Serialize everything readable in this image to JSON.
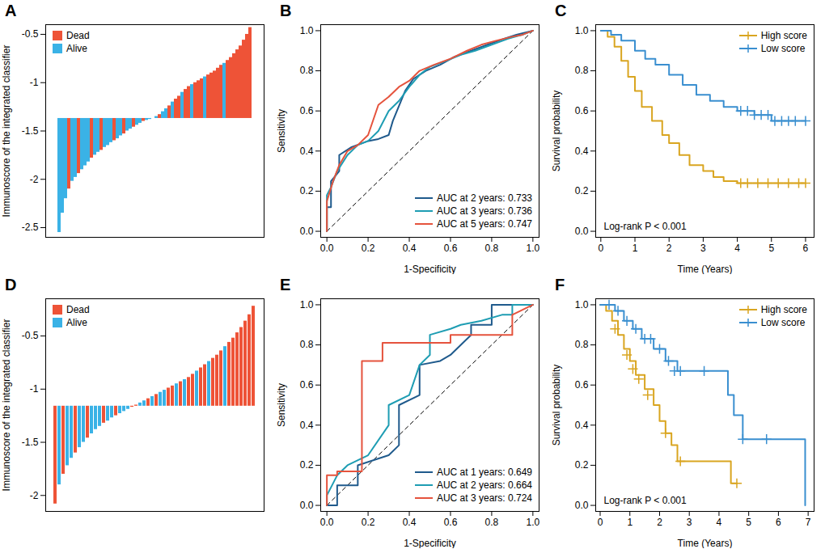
{
  "chart_data": [
    {
      "panel": "A",
      "type": "bar",
      "ylabel": "Immunoscore of the integrated classifier",
      "baseline": -1.37,
      "values": [
        -2.55,
        -2.35,
        -2.2,
        -2.1,
        -2.02,
        -1.98,
        -1.94,
        -1.9,
        -1.86,
        -1.82,
        -1.78,
        -1.75,
        -1.72,
        -1.7,
        -1.67,
        -1.65,
        -1.62,
        -1.6,
        -1.58,
        -1.55,
        -1.53,
        -1.5,
        -1.48,
        -1.46,
        -1.44,
        -1.42,
        -1.4,
        -1.39,
        -1.38,
        -1.37,
        -1.35,
        -1.33,
        -1.3,
        -1.27,
        -1.24,
        -1.2,
        -1.17,
        -1.14,
        -1.1,
        -1.07,
        -1.04,
        -1.02,
        -1.0,
        -0.98,
        -0.96,
        -0.94,
        -0.92,
        -0.9,
        -0.88,
        -0.85,
        -0.82,
        -0.8,
        -0.77,
        -0.74,
        -0.7,
        -0.66,
        -0.62,
        -0.56,
        -0.5,
        -0.43
      ],
      "status": [
        "Alive",
        "Alive",
        "Alive",
        "Dead",
        "Alive",
        "Alive",
        "Dead",
        "Alive",
        "Alive",
        "Alive",
        "Dead",
        "Alive",
        "Alive",
        "Dead",
        "Alive",
        "Alive",
        "Alive",
        "Dead",
        "Alive",
        "Alive",
        "Dead",
        "Alive",
        "Alive",
        "Dead",
        "Alive",
        "Alive",
        "Dead",
        "Alive",
        "Alive",
        "Dead",
        "Alive",
        "Dead",
        "Alive",
        "Alive",
        "Dead",
        "Alive",
        "Dead",
        "Dead",
        "Alive",
        "Dead",
        "Dead",
        "Alive",
        "Dead",
        "Dead",
        "Dead",
        "Alive",
        "Dead",
        "Dead",
        "Dead",
        "Dead",
        "Dead",
        "Alive",
        "Dead",
        "Dead",
        "Dead",
        "Dead",
        "Dead",
        "Dead",
        "Dead",
        "Dead"
      ],
      "series": [
        {
          "name": "Dead",
          "color": "#EE5337"
        },
        {
          "name": "Alive",
          "color": "#3AB2E6"
        }
      ],
      "ylim": [
        -2.6,
        -0.4
      ],
      "yticks": [
        -2.5,
        -2,
        -1.5,
        -1,
        -0.5
      ],
      "tick_labels": "y",
      "legend": "top-left"
    },
    {
      "panel": "B",
      "type": "line",
      "xlabel": "1-Specificity",
      "ylabel": "Sensitivity",
      "diagonal": {
        "x": [
          0,
          1
        ],
        "y": [
          0,
          1
        ],
        "line_style": "dashed"
      },
      "series": [
        {
          "name": "AUC at 2 years: 0.733",
          "color": "#1F5A8C",
          "x": [
            0,
            0,
            0.02,
            0.02,
            0.06,
            0.06,
            0.12,
            0.2,
            0.25,
            0.3,
            0.32,
            0.38,
            0.42,
            0.48,
            0.55,
            0.62,
            0.7,
            0.78,
            0.86,
            0.92,
            1
          ],
          "y": [
            0,
            0.12,
            0.12,
            0.25,
            0.3,
            0.38,
            0.42,
            0.45,
            0.46,
            0.48,
            0.55,
            0.7,
            0.76,
            0.8,
            0.83,
            0.87,
            0.9,
            0.93,
            0.96,
            0.98,
            1
          ]
        },
        {
          "name": "AUC at 3 years: 0.736",
          "color": "#1E9DB3",
          "x": [
            0,
            0,
            0.02,
            0.05,
            0.1,
            0.15,
            0.2,
            0.25,
            0.3,
            0.35,
            0.4,
            0.45,
            0.5,
            0.58,
            0.65,
            0.72,
            0.8,
            0.88,
            0.95,
            1
          ],
          "y": [
            0,
            0.18,
            0.22,
            0.3,
            0.38,
            0.43,
            0.45,
            0.5,
            0.6,
            0.65,
            0.72,
            0.78,
            0.82,
            0.85,
            0.88,
            0.9,
            0.93,
            0.96,
            0.98,
            1
          ]
        },
        {
          "name": "AUC at 5 years: 0.747",
          "color": "#E5533D",
          "x": [
            0,
            0,
            0.03,
            0.06,
            0.1,
            0.15,
            0.2,
            0.25,
            0.3,
            0.35,
            0.4,
            0.45,
            0.52,
            0.6,
            0.68,
            0.75,
            0.82,
            0.9,
            0.95,
            1
          ],
          "y": [
            0,
            0.15,
            0.25,
            0.33,
            0.4,
            0.43,
            0.48,
            0.63,
            0.67,
            0.72,
            0.75,
            0.8,
            0.83,
            0.86,
            0.9,
            0.93,
            0.95,
            0.97,
            0.98,
            1
          ]
        }
      ],
      "xlim": [
        -0.03,
        1.03
      ],
      "xticks": [
        {
          "value": 0,
          "label": "0.0"
        },
        0.2,
        0.4,
        0.6,
        0.8,
        {
          "value": 1,
          "label": "1.0"
        }
      ],
      "ylim": [
        -0.03,
        1.03
      ],
      "yticks": [
        {
          "value": 0,
          "label": "0.0"
        },
        0.2,
        0.4,
        0.6,
        0.8,
        {
          "value": 1,
          "label": "1.0"
        }
      ],
      "legend": "bottom-right"
    },
    {
      "panel": "C",
      "type": "step",
      "xlabel": "Time (Years)",
      "ylabel": "Survival probability",
      "annotation": "Log-rank P < 0.001",
      "series": [
        {
          "name": "High score",
          "color": "#D9A520",
          "marker": "plus",
          "x": [
            0,
            0.2,
            0.4,
            0.6,
            0.8,
            1,
            1.2,
            1.5,
            1.8,
            2,
            2.3,
            2.6,
            3,
            3.3,
            3.6,
            4,
            6
          ],
          "y": [
            1,
            0.97,
            0.92,
            0.85,
            0.77,
            0.7,
            0.62,
            0.55,
            0.48,
            0.44,
            0.38,
            0.33,
            0.3,
            0.27,
            0.25,
            0.24,
            0.24
          ],
          "censored_x": [
            4.1,
            4.3,
            4.6,
            4.9,
            5.2,
            5.5,
            5.8,
            6.0
          ],
          "censored_y": [
            0.24,
            0.24,
            0.24,
            0.24,
            0.24,
            0.24,
            0.24,
            0.24
          ]
        },
        {
          "name": "Low score",
          "color": "#3A8FD0",
          "marker": "plus",
          "x": [
            0,
            0.3,
            0.6,
            1,
            1.3,
            1.6,
            2,
            2.4,
            2.8,
            3.2,
            3.6,
            4,
            4.5,
            5,
            6
          ],
          "y": [
            1,
            0.98,
            0.95,
            0.9,
            0.86,
            0.83,
            0.78,
            0.73,
            0.68,
            0.65,
            0.62,
            0.6,
            0.58,
            0.55,
            0.55
          ],
          "censored_x": [
            4.1,
            4.3,
            4.5,
            4.7,
            4.9,
            5.1,
            5.3,
            5.5,
            5.7,
            6.0
          ],
          "censored_y": [
            0.6,
            0.6,
            0.58,
            0.58,
            0.58,
            0.55,
            0.55,
            0.55,
            0.55,
            0.55
          ]
        }
      ],
      "xlim": [
        -0.15,
        6.25
      ],
      "xticks": [
        0,
        1,
        2,
        3,
        4,
        5,
        6
      ],
      "ylim": [
        -0.03,
        1.03
      ],
      "yticks": [
        {
          "value": 0,
          "label": "0.0"
        },
        0.2,
        0.4,
        0.6,
        0.8,
        {
          "value": 1,
          "label": "1.0"
        }
      ],
      "legend": "top-right"
    },
    {
      "panel": "D",
      "type": "bar",
      "ylabel": "Immunoscore of the integrated classifier",
      "baseline": -1.16,
      "values": [
        -2.08,
        -1.9,
        -1.8,
        -1.72,
        -1.65,
        -1.6,
        -1.55,
        -1.5,
        -1.46,
        -1.42,
        -1.38,
        -1.35,
        -1.32,
        -1.3,
        -1.27,
        -1.25,
        -1.23,
        -1.21,
        -1.19,
        -1.17,
        -1.15,
        -1.13,
        -1.11,
        -1.09,
        -1.07,
        -1.05,
        -1.03,
        -1.01,
        -0.99,
        -0.97,
        -0.95,
        -0.93,
        -0.91,
        -0.89,
        -0.86,
        -0.83,
        -0.8,
        -0.77,
        -0.74,
        -0.71,
        -0.68,
        -0.64,
        -0.6,
        -0.56,
        -0.52,
        -0.47,
        -0.42,
        -0.36,
        -0.3,
        -0.22
      ],
      "status": [
        "Dead",
        "Alive",
        "Dead",
        "Alive",
        "Alive",
        "Dead",
        "Alive",
        "Alive",
        "Dead",
        "Alive",
        "Alive",
        "Alive",
        "Dead",
        "Alive",
        "Alive",
        "Dead",
        "Alive",
        "Alive",
        "Alive",
        "Dead",
        "Dead",
        "Alive",
        "Alive",
        "Dead",
        "Alive",
        "Dead",
        "Alive",
        "Alive",
        "Dead",
        "Dead",
        "Alive",
        "Dead",
        "Alive",
        "Dead",
        "Dead",
        "Alive",
        "Dead",
        "Dead",
        "Alive",
        "Dead",
        "Dead",
        "Dead",
        "Alive",
        "Dead",
        "Dead",
        "Dead",
        "Dead",
        "Dead",
        "Dead",
        "Dead"
      ],
      "series": [
        {
          "name": "Dead",
          "color": "#EE5337"
        },
        {
          "name": "Alive",
          "color": "#3AB2E6"
        }
      ],
      "ylim": [
        -2.15,
        -0.15
      ],
      "yticks": [
        -2,
        -1.5,
        -1,
        -0.5
      ],
      "tick_labels": "y",
      "legend": "top-left"
    },
    {
      "panel": "E",
      "type": "line",
      "xlabel": "1-Specificity",
      "ylabel": "Sensitivity",
      "diagonal": {
        "x": [
          0,
          1
        ],
        "y": [
          0,
          1
        ],
        "line_style": "dashed"
      },
      "series": [
        {
          "name": "AUC at 1 years: 0.649",
          "color": "#1F5A8C",
          "x": [
            0,
            0.05,
            0.05,
            0.15,
            0.15,
            0.3,
            0.35,
            0.35,
            0.45,
            0.45,
            0.55,
            0.6,
            0.7,
            0.7,
            0.8,
            0.8,
            0.9,
            1
          ],
          "y": [
            0,
            0,
            0.1,
            0.1,
            0.2,
            0.25,
            0.3,
            0.5,
            0.55,
            0.7,
            0.72,
            0.75,
            0.85,
            0.9,
            0.9,
            1,
            1,
            1
          ]
        },
        {
          "name": "AUC at 2 years: 0.664",
          "color": "#1E9DB3",
          "x": [
            0,
            0,
            0.05,
            0.1,
            0.2,
            0.3,
            0.3,
            0.4,
            0.45,
            0.5,
            0.5,
            0.6,
            0.65,
            0.75,
            0.85,
            0.9,
            0.9,
            1
          ],
          "y": [
            0,
            0.05,
            0.15,
            0.2,
            0.25,
            0.4,
            0.5,
            0.55,
            0.7,
            0.75,
            0.85,
            0.88,
            0.9,
            0.92,
            0.95,
            0.95,
            1,
            1
          ]
        },
        {
          "name": "AUC at 3 years: 0.724",
          "color": "#E5533D",
          "x": [
            0,
            0,
            0.05,
            0.05,
            0.17,
            0.17,
            0.27,
            0.27,
            0.6,
            0.6,
            0.9,
            0.9,
            1
          ],
          "y": [
            0,
            0.15,
            0.15,
            0.17,
            0.17,
            0.72,
            0.72,
            0.81,
            0.81,
            0.85,
            0.85,
            0.95,
            1
          ]
        }
      ],
      "xlim": [
        -0.03,
        1.03
      ],
      "xticks": [
        {
          "value": 0,
          "label": "0.0"
        },
        0.2,
        0.4,
        0.6,
        0.8,
        {
          "value": 1,
          "label": "1.0"
        }
      ],
      "ylim": [
        -0.03,
        1.03
      ],
      "yticks": [
        {
          "value": 0,
          "label": "0.0"
        },
        0.2,
        0.4,
        0.6,
        0.8,
        {
          "value": 1,
          "label": "1.0"
        }
      ],
      "legend": "bottom-right"
    },
    {
      "panel": "F",
      "type": "step",
      "xlabel": "Time (Years)",
      "ylabel": "Survival probability",
      "annotation": "Log-rank P < 0.001",
      "series": [
        {
          "name": "High score",
          "color": "#D9A520",
          "marker": "plus",
          "x": [
            0,
            0.2,
            0.4,
            0.6,
            0.8,
            1,
            1.2,
            1.5,
            1.8,
            2,
            2.2,
            2.4,
            2.6,
            2.7,
            4.4,
            4.6
          ],
          "y": [
            1,
            0.97,
            0.92,
            0.85,
            0.78,
            0.72,
            0.65,
            0.58,
            0.5,
            0.42,
            0.36,
            0.3,
            0.22,
            0.22,
            0.11,
            0.11
          ],
          "censored_x": [
            0.5,
            0.9,
            1.1,
            1.3,
            1.6,
            2.2,
            2.7,
            4.6
          ],
          "censored_y": [
            0.88,
            0.75,
            0.68,
            0.63,
            0.55,
            0.36,
            0.22,
            0.11
          ]
        },
        {
          "name": "Low score",
          "color": "#3A8FD0",
          "marker": "plus",
          "x": [
            0,
            0.5,
            0.8,
            1.1,
            1.4,
            1.8,
            2.2,
            2.6,
            4.3,
            4.5,
            4.8,
            6.9
          ],
          "y": [
            1,
            0.97,
            0.92,
            0.88,
            0.83,
            0.78,
            0.72,
            0.67,
            0.55,
            0.45,
            0.33,
            0
          ],
          "censored_x": [
            0.3,
            0.6,
            0.9,
            1.2,
            1.5,
            1.7,
            2.0,
            2.3,
            2.5,
            2.7,
            3.5,
            4.8,
            5.6
          ],
          "censored_y": [
            1,
            0.97,
            0.92,
            0.88,
            0.83,
            0.83,
            0.78,
            0.72,
            0.67,
            0.67,
            0.67,
            0.33,
            0.33
          ]
        }
      ],
      "xlim": [
        -0.15,
        7.2
      ],
      "xticks": [
        0,
        1,
        2,
        3,
        4,
        5,
        6,
        7
      ],
      "ylim": [
        -0.03,
        1.03
      ],
      "yticks": [
        {
          "value": 0,
          "label": "0.0"
        },
        0.2,
        0.4,
        0.6,
        0.8,
        {
          "value": 1,
          "label": "1.0"
        }
      ],
      "legend": "top-right"
    }
  ]
}
